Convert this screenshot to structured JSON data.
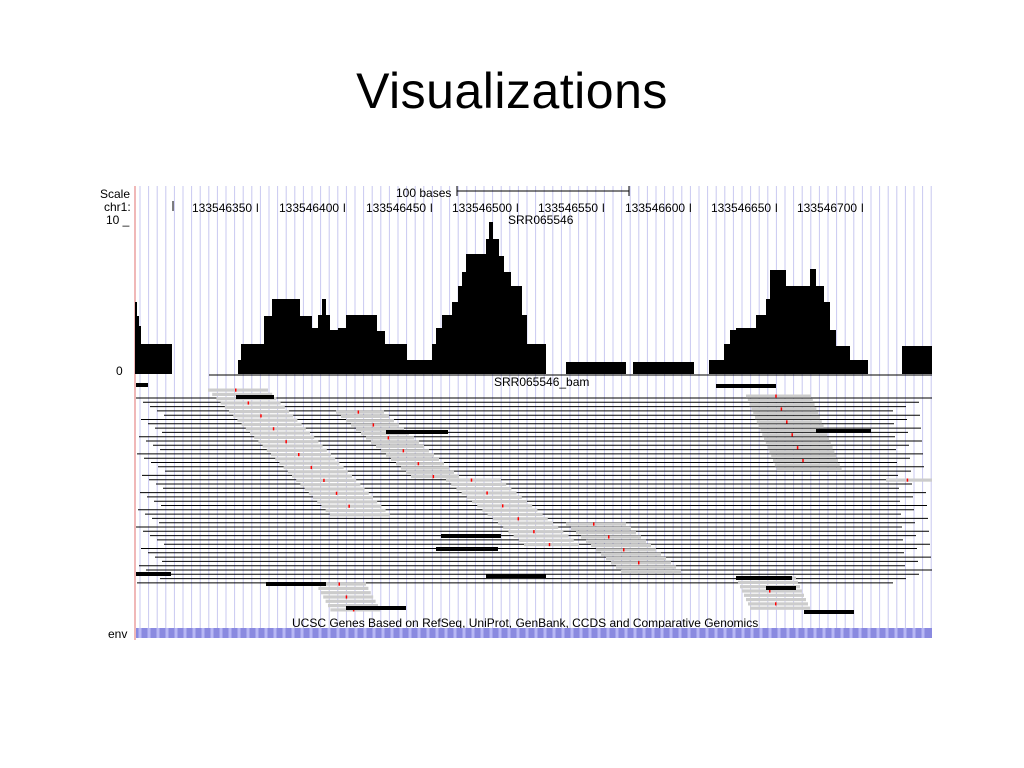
{
  "slide": {
    "title": "Visualizations"
  },
  "ruler": {
    "scale_label": "Scale",
    "chrom_label": "chr1:",
    "scale_text": "100 bases",
    "positions": [
      "133546350",
      "133546400",
      "133546450",
      "133546500",
      "133546550",
      "133546600",
      "133546650",
      "133546700"
    ],
    "tick_suffix": "l"
  },
  "coverage_track": {
    "name": "SRR065546",
    "y_max_label": "10 _",
    "y_min_label": "0",
    "fill_color": "#000000"
  },
  "reads_track": {
    "name": "SRR065546_bam",
    "read_color": "#cccccc",
    "highlight_color": "#000000",
    "mismatch_color": "#ff0000"
  },
  "genes_track": {
    "title": "UCSC Genes Based on RefSeq, UniProt, GenBank, CCDS and Comparative Genomics",
    "label": "env",
    "bar_color": "#8a8ae0"
  },
  "colors": {
    "grid": "#c8c8f0",
    "left_border": "#e07070"
  }
}
